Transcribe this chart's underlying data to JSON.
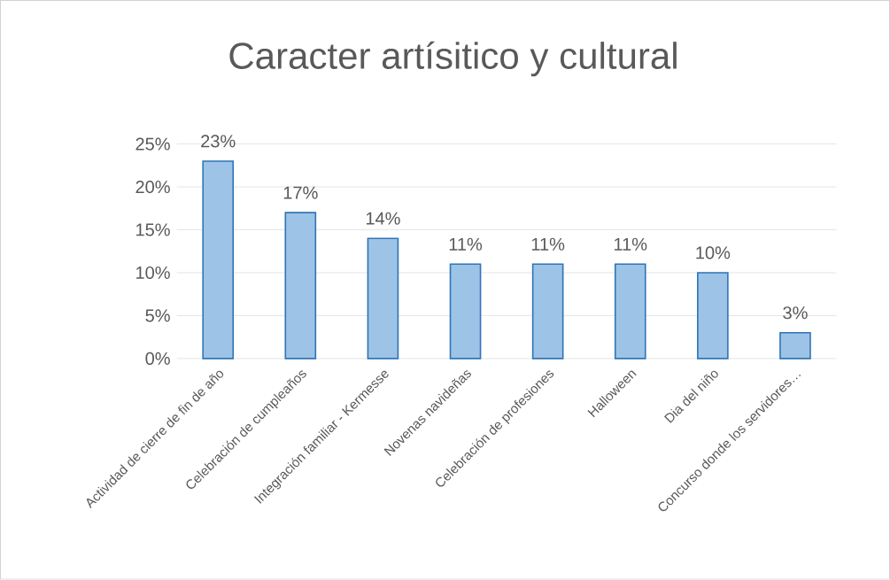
{
  "chart_data": {
    "type": "bar",
    "title": "Caracter artísitico y cultural",
    "categories": [
      "Actividad de cierre de fin de año",
      "Celebración de cumpleaños",
      "Integración familiar - Kermesse",
      "Novenas navideñas",
      "Celebración de profesiones",
      "Halloween",
      "Dia del niño",
      "Concurso donde los servidores…"
    ],
    "values": [
      23,
      17,
      14,
      11,
      11,
      11,
      10,
      3
    ],
    "value_labels": [
      "23%",
      "17%",
      "14%",
      "11%",
      "11%",
      "11%",
      "10%",
      "3%"
    ],
    "color": "#9dc3e6",
    "ylim": [
      0,
      25
    ],
    "yticks": [
      {
        "value": 0,
        "label": "0%"
      },
      {
        "value": 5,
        "label": "5%"
      },
      {
        "value": 10,
        "label": "10%"
      },
      {
        "value": 15,
        "label": "15%"
      },
      {
        "value": 20,
        "label": "20%"
      },
      {
        "value": 25,
        "label": "25%"
      }
    ],
    "grid": "y"
  }
}
